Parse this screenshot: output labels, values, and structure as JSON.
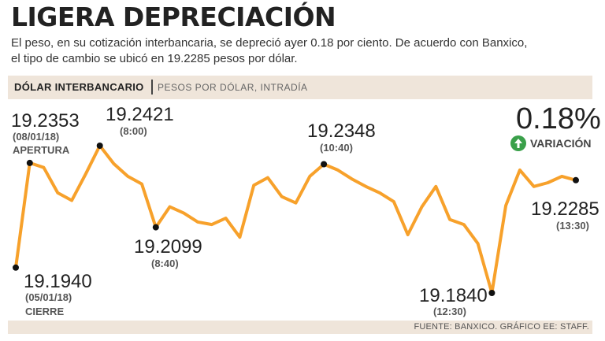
{
  "header": {
    "title": "LIGERA DEPRECIACIÓN",
    "subtitle_line1": "El peso, en su cotización interbancaria, se depreció ayer 0.18 por ciento. De acuerdo con Banxico,",
    "subtitle_line2": "el tipo de cambio se ubicó en 19.2285 pesos por dólar."
  },
  "section_bar": {
    "label": "DÓLAR INTERBANCARIO",
    "unit": "PESOS POR DÓLAR, INTRADÍA"
  },
  "variation": {
    "value": "0.18%",
    "label": "VARIACIÓN",
    "icon": "arrow-up-icon"
  },
  "footer": {
    "source": "FUENTE: BANXICO. GRÁFICO EE: STAFF."
  },
  "colors": {
    "line": "#f7a12b",
    "marker": "#111111",
    "band": "#efe5da",
    "up": "#3aa04a"
  },
  "chart_data": {
    "type": "line",
    "title": "DÓLAR INTERBANCARIO",
    "ylabel": "PESOS POR DÓLAR, INTRADÍA",
    "xlabel": "",
    "ylim": [
      19.184,
      19.2421
    ],
    "values": [
      19.194,
      19.2353,
      19.2335,
      19.2235,
      19.2205,
      19.231,
      19.2421,
      19.235,
      19.23,
      19.227,
      19.2099,
      19.218,
      19.2155,
      19.212,
      19.211,
      19.2135,
      19.206,
      19.2265,
      19.2295,
      19.222,
      19.2195,
      19.23,
      19.2348,
      19.2325,
      19.229,
      19.226,
      19.2235,
      19.22,
      19.207,
      19.218,
      19.226,
      19.213,
      19.211,
      19.2035,
      19.184,
      19.2185,
      19.2325,
      19.226,
      19.2275,
      19.23,
      19.2285
    ],
    "annotations": [
      {
        "index": 0,
        "value": "19.1940",
        "date": "(05/01/18)",
        "tag": "CIERRE"
      },
      {
        "index": 1,
        "value": "19.2353",
        "date": "(08/01/18)",
        "tag": "APERTURA"
      },
      {
        "index": 6,
        "value": "19.2421",
        "date": "(8:00)"
      },
      {
        "index": 10,
        "value": "19.2099",
        "date": "(8:40)"
      },
      {
        "index": 22,
        "value": "19.2348",
        "date": "(10:40)"
      },
      {
        "index": 34,
        "value": "19.1840",
        "date": "(12:30)"
      },
      {
        "index": 40,
        "value": "19.2285",
        "date": "(13:30)"
      }
    ]
  }
}
